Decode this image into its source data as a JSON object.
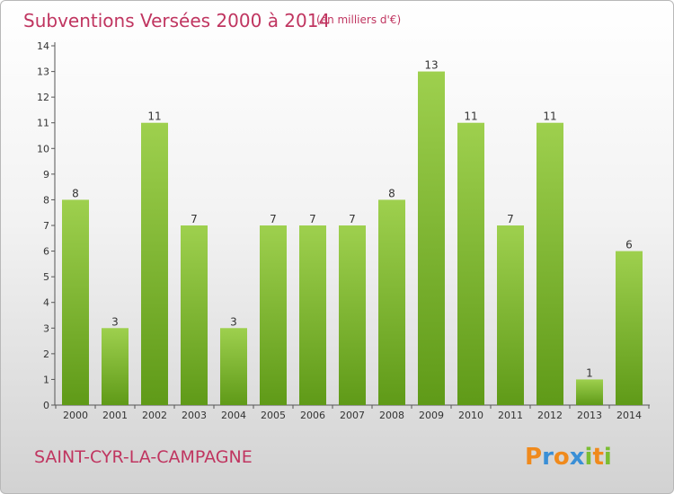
{
  "colors": {
    "accent": "#c03560",
    "bar_light": "#9ed04e",
    "bar_dark": "#5f9a18",
    "axis": "#555555"
  },
  "commune": "SAINT-CYR-LA-CAMPAGNE",
  "logo": {
    "text": "Proxiti",
    "letters": [
      {
        "ch": "P",
        "color": "#f08a1c"
      },
      {
        "ch": "r",
        "color": "#3a8fd6"
      },
      {
        "ch": "o",
        "color": "#f08a1c"
      },
      {
        "ch": "x",
        "color": "#3a8fd6"
      },
      {
        "ch": "i",
        "color": "#7bbd32"
      },
      {
        "ch": "t",
        "color": "#f08a1c"
      },
      {
        "ch": "i",
        "color": "#7bbd32"
      }
    ]
  },
  "chart_data": {
    "type": "bar",
    "title": "Subventions Versées 2000 à 2014",
    "subtitle": "(en milliers d'€)",
    "xlabel": "",
    "ylabel": "",
    "categories": [
      "2000",
      "2001",
      "2002",
      "2003",
      "2004",
      "2005",
      "2006",
      "2007",
      "2008",
      "2009",
      "2010",
      "2011",
      "2012",
      "2013",
      "2014"
    ],
    "values": [
      8,
      3,
      11,
      7,
      3,
      7,
      7,
      7,
      8,
      13,
      11,
      7,
      11,
      1,
      6
    ],
    "ylim": [
      0,
      14
    ],
    "yticks": [
      0,
      1,
      2,
      3,
      4,
      5,
      6,
      7,
      8,
      9,
      10,
      11,
      12,
      13,
      14
    ],
    "grid": false,
    "legend": "none"
  }
}
